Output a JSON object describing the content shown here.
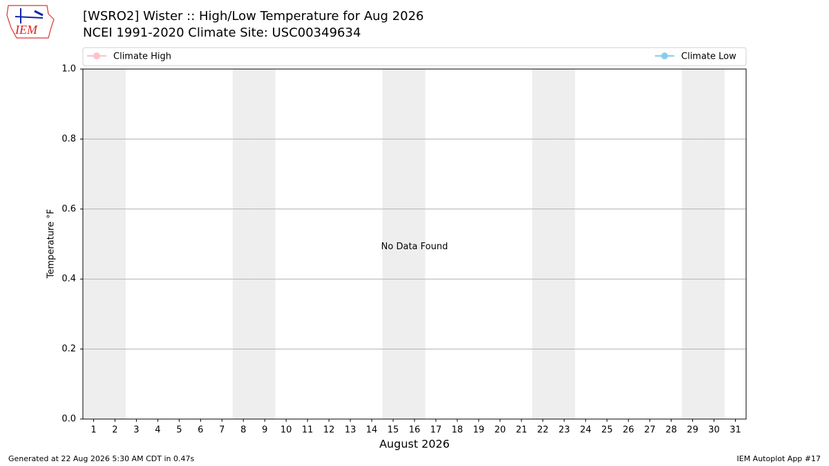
{
  "logo": {
    "text": "IEM"
  },
  "chart_data": {
    "type": "line",
    "title": "[WSRO2] Wister :: High/Low Temperature for Aug 2026",
    "subtitle": "NCEI 1991-2020 Climate Site: USC00349634",
    "xlabel": "August 2026",
    "ylabel": "Temperature °F",
    "annotation": "No Data Found",
    "x": [
      1,
      2,
      3,
      4,
      5,
      6,
      7,
      8,
      9,
      10,
      11,
      12,
      13,
      14,
      15,
      16,
      17,
      18,
      19,
      20,
      21,
      22,
      23,
      24,
      25,
      26,
      27,
      28,
      29,
      30,
      31
    ],
    "xlim": [
      0.5,
      31.5
    ],
    "xticks": [
      1,
      2,
      3,
      4,
      5,
      6,
      7,
      8,
      9,
      10,
      11,
      12,
      13,
      14,
      15,
      16,
      17,
      18,
      19,
      20,
      21,
      22,
      23,
      24,
      25,
      26,
      27,
      28,
      29,
      30,
      31
    ],
    "ylim": [
      0,
      1
    ],
    "yticks": [
      {
        "value": 0,
        "label": "0.0"
      },
      {
        "value": 0.2,
        "label": "0.2"
      },
      {
        "value": 0.4,
        "label": "0.4"
      },
      {
        "value": 0.6,
        "label": "0.6"
      },
      {
        "value": 0.8,
        "label": "0.8"
      },
      {
        "value": 1,
        "label": "1.0"
      }
    ],
    "grid": true,
    "shaded_days": [
      1,
      2,
      8,
      9,
      15,
      16,
      22,
      23,
      29,
      30
    ],
    "shade_color": "#eeeeee",
    "series": [
      {
        "name": "Climate High",
        "color": "#ffc0cb",
        "values": [
          null,
          null,
          null,
          null,
          null,
          null,
          null,
          null,
          null,
          null,
          null,
          null,
          null,
          null,
          null,
          null,
          null,
          null,
          null,
          null,
          null,
          null,
          null,
          null,
          null,
          null,
          null,
          null,
          null,
          null,
          null
        ]
      },
      {
        "name": "Climate Low",
        "color": "#87ceeb",
        "values": [
          null,
          null,
          null,
          null,
          null,
          null,
          null,
          null,
          null,
          null,
          null,
          null,
          null,
          null,
          null,
          null,
          null,
          null,
          null,
          null,
          null,
          null,
          null,
          null,
          null,
          null,
          null,
          null,
          null,
          null,
          null
        ]
      }
    ]
  },
  "footer": {
    "left": "Generated at 22 Aug 2026 5:30 AM CDT in 0.47s",
    "right": "IEM Autoplot App #17"
  }
}
